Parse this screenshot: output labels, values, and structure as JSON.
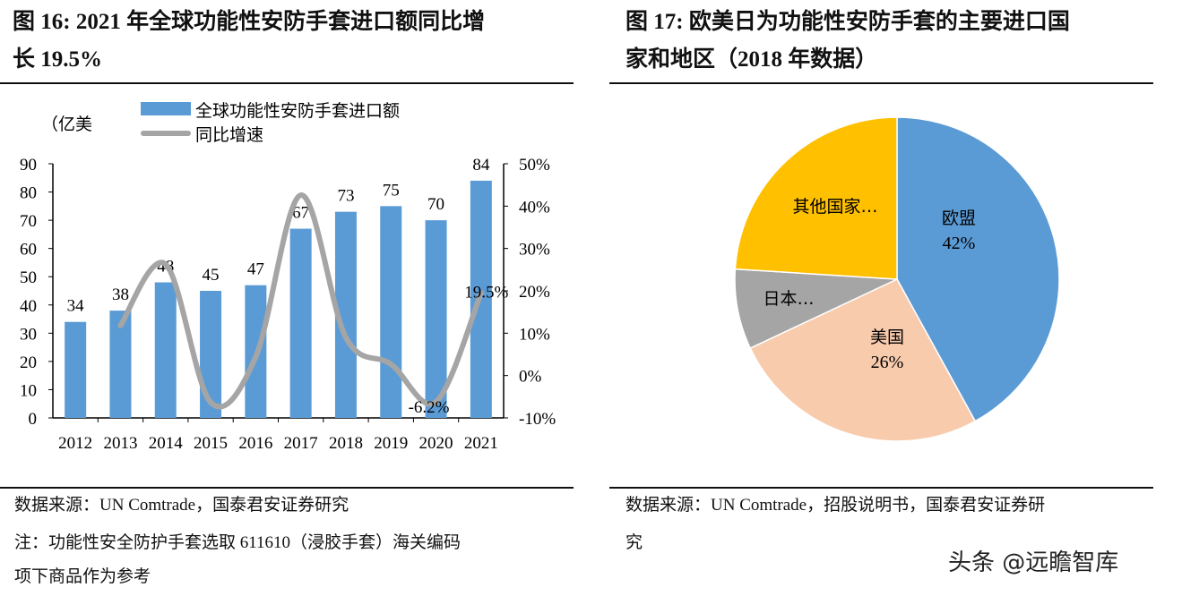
{
  "left": {
    "title_line1": "图 16: 2021 年全球功能性安防手套进口额同比增",
    "title_line2": "长 19.5%",
    "source": "数据来源：UN Comtrade，国泰君安证券研究",
    "note_line1": "注：功能性安全防护手套选取 611610（浸胶手套）海关编码",
    "note_line2": "项下商品作为参考"
  },
  "right": {
    "title_line1": "图 17: 欧美日为功能性安防手套的主要进口国",
    "title_line2": "家和地区（2018 年数据）",
    "source_line1": "数据来源：UN Comtrade，招股说明书，国泰君安证券研",
    "source_line2": "究"
  },
  "watermark": "头条 @远瞻智库",
  "chart_data": [
    {
      "type": "bar+line",
      "ylabel": "（亿美",
      "categories": [
        "2012",
        "2013",
        "2014",
        "2015",
        "2016",
        "2017",
        "2018",
        "2019",
        "2020",
        "2021"
      ],
      "series": [
        {
          "name": "全球功能性安防手套进口额",
          "type": "bar",
          "axis": "left",
          "color": "#5B9BD5",
          "values": [
            34,
            38,
            48,
            45,
            47,
            67,
            73,
            75,
            70,
            84
          ],
          "data_labels": [
            "34",
            "38",
            "48",
            "45",
            "47",
            "67",
            "73",
            "75",
            "70",
            "84"
          ]
        },
        {
          "name": "同比增速",
          "type": "line",
          "axis": "right",
          "color": "#A5A5A5",
          "values": [
            null,
            11.8,
            26.3,
            -6.3,
            4.4,
            42.6,
            9.0,
            2.7,
            -6.2,
            19.5
          ],
          "data_labels": {
            "2020": "-6.2%",
            "2021": "19.5%"
          }
        }
      ],
      "y_left": {
        "range": [
          0,
          90
        ],
        "ticks": [
          "0",
          "10",
          "20",
          "30",
          "40",
          "50",
          "60",
          "70",
          "80",
          "90"
        ]
      },
      "y_right": {
        "range": [
          -10,
          50
        ],
        "ticks": [
          "-10%",
          "0%",
          "10%",
          "20%",
          "30%",
          "40%",
          "50%"
        ]
      },
      "legend": "top",
      "grid": false
    },
    {
      "type": "pie",
      "slices": [
        {
          "label": "欧盟",
          "value": 42,
          "value_label": "42%",
          "color": "#5B9BD5"
        },
        {
          "label": "美国",
          "value": 26,
          "value_label": "26%",
          "color": "#F8CBAD"
        },
        {
          "label": "日本…",
          "value": 8,
          "color": "#A5A5A5"
        },
        {
          "label": "其他国家…",
          "value": 24,
          "color": "#FFC000"
        }
      ]
    }
  ]
}
